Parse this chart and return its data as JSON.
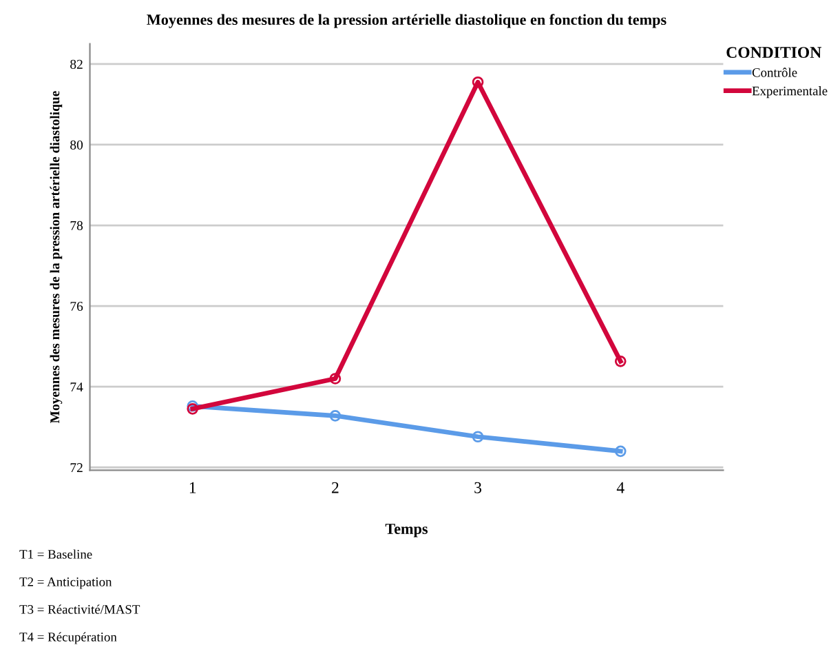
{
  "chart_data": {
    "type": "line",
    "title": "Moyennes des mesures de la pression artérielle diastolique en fonction du temps",
    "xlabel": "Temps",
    "ylabel": "Moyennes des mesures de la pression artérielle diastolique",
    "legend_title": "CONDITION",
    "legend": "top right",
    "categories": [
      "1",
      "2",
      "3",
      "4"
    ],
    "series": [
      {
        "name": "Contrôle",
        "color": "#5b9be8",
        "values": [
          73.52,
          73.28,
          72.76,
          72.4
        ]
      },
      {
        "name": "Experimentale",
        "color": "#d2063c",
        "values": [
          73.45,
          74.2,
          81.55,
          74.63
        ]
      }
    ],
    "ylim": [
      71.93,
      82.5
    ],
    "yticks": [
      72,
      74,
      76,
      78,
      80,
      82
    ],
    "grid": "y",
    "marker": "circle",
    "line_style": "solid",
    "annotations": [
      "T1 = Baseline",
      "T2 = Anticipation",
      "T3 = Réactivité/MAST",
      "T4 = Récupération"
    ]
  }
}
